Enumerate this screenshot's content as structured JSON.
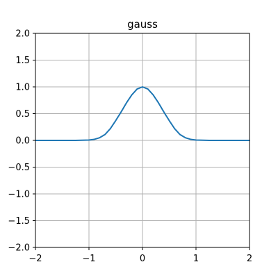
{
  "chart_data": {
    "type": "line",
    "title": "gauss",
    "xlabel": "",
    "ylabel": "",
    "xlim": [
      -2,
      2
    ],
    "ylim": [
      -2,
      2
    ],
    "grid": true,
    "x_ticks": [
      -2,
      -1,
      0,
      1,
      2
    ],
    "x_tick_labels": [
      "−2",
      "−1",
      "0",
      "1",
      "2"
    ],
    "y_ticks": [
      -2.0,
      -1.5,
      -1.0,
      -0.5,
      0.0,
      0.5,
      1.0,
      1.5,
      2.0
    ],
    "y_tick_labels": [
      "−2.0",
      "−1.5",
      "−1.0",
      "−0.5",
      "0.0",
      "0.5",
      "1.0",
      "1.5",
      "2.0"
    ],
    "series": [
      {
        "color": "#1f77b4",
        "x": [
          -2.0,
          -1.5,
          -1.25,
          -1.0,
          -0.9,
          -0.8,
          -0.7,
          -0.6,
          -0.5,
          -0.4,
          -0.3,
          -0.2,
          -0.1,
          0.0,
          0.1,
          0.2,
          0.3,
          0.4,
          0.5,
          0.6,
          0.7,
          0.8,
          0.9,
          1.0,
          1.25,
          1.5,
          2.0
        ],
        "y": [
          0.0,
          0.0001,
          0.0004,
          0.007,
          0.02,
          0.05,
          0.11,
          0.22,
          0.37,
          0.53,
          0.7,
          0.85,
          0.96,
          1.0,
          0.96,
          0.85,
          0.7,
          0.53,
          0.37,
          0.22,
          0.11,
          0.05,
          0.02,
          0.007,
          0.0004,
          0.0001,
          0.0
        ]
      }
    ]
  }
}
